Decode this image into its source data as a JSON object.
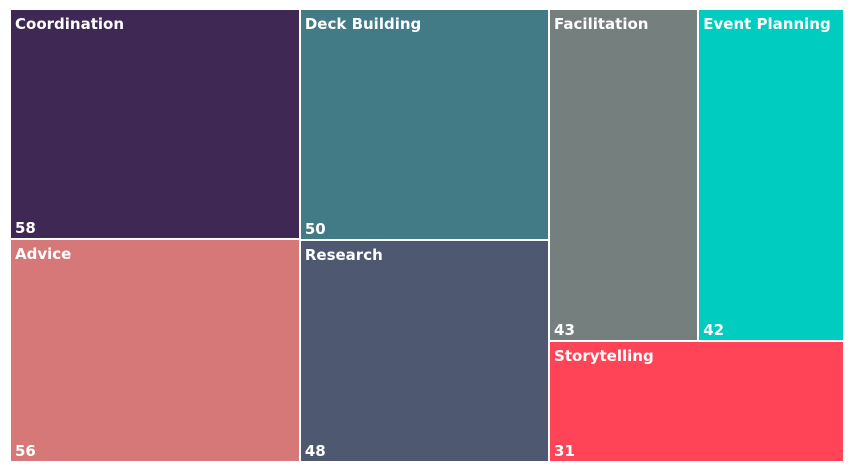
{
  "chart_data": {
    "type": "treemap",
    "items": [
      {
        "name": "Coordination",
        "value": 58,
        "color": "#3f2854"
      },
      {
        "name": "Advice",
        "value": 56,
        "color": "#d77878"
      },
      {
        "name": "Deck Building",
        "value": 50,
        "color": "#427b85"
      },
      {
        "name": "Research",
        "value": 48,
        "color": "#4e5971"
      },
      {
        "name": "Facilitation",
        "value": 43,
        "color": "#757f7d"
      },
      {
        "name": "Event Planning",
        "value": 42,
        "color": "#00cdc0"
      },
      {
        "name": "Storytelling",
        "value": 31,
        "color": "#ff4457"
      }
    ]
  }
}
